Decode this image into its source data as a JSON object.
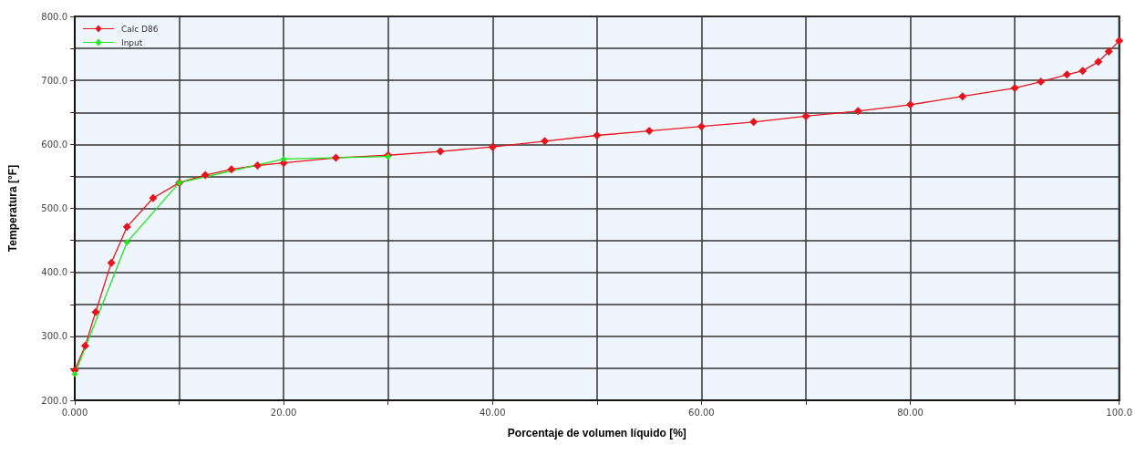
{
  "chart_data": {
    "type": "line",
    "xlabel": "Porcentaje de volumen líquido [%]",
    "ylabel": "Temperatura [°F]",
    "xlim": [
      0,
      100
    ],
    "ylim": [
      200,
      800
    ],
    "xticks": [
      {
        "value": 0,
        "label": "0.000"
      },
      {
        "value": 10,
        "label": null
      },
      {
        "value": 20,
        "label": "20.00"
      },
      {
        "value": 30,
        "label": null
      },
      {
        "value": 40,
        "label": "40.00"
      },
      {
        "value": 50,
        "label": null
      },
      {
        "value": 60,
        "label": "60.00"
      },
      {
        "value": 70,
        "label": null
      },
      {
        "value": 80,
        "label": "80.00"
      },
      {
        "value": 90,
        "label": null
      },
      {
        "value": 100,
        "label": "100.0"
      }
    ],
    "yticks": [
      {
        "value": 200,
        "label": "200.0"
      },
      {
        "value": 250,
        "label": null
      },
      {
        "value": 300,
        "label": "300.0"
      },
      {
        "value": 350,
        "label": null
      },
      {
        "value": 400,
        "label": "400.0"
      },
      {
        "value": 450,
        "label": null
      },
      {
        "value": 500,
        "label": "500.0"
      },
      {
        "value": 550,
        "label": null
      },
      {
        "value": 600,
        "label": "600.0"
      },
      {
        "value": 650,
        "label": null
      },
      {
        "value": 700,
        "label": "700.0"
      },
      {
        "value": 750,
        "label": null
      },
      {
        "value": 800,
        "label": "800.0"
      }
    ],
    "grid": true,
    "legend": "top left",
    "marker": "diamond",
    "line_style": "solid",
    "series": [
      {
        "name": "Calc D86",
        "color": "#e8141c",
        "x": [
          0,
          1,
          2,
          3.5,
          5,
          7.5,
          10,
          12.5,
          15,
          17.5,
          20,
          25,
          30,
          35,
          40,
          45,
          50,
          55,
          60,
          65,
          70,
          75,
          80,
          85,
          90,
          92.5,
          95,
          96.5,
          98,
          99,
          100
        ],
        "values": [
          247,
          285,
          338,
          415,
          471,
          516,
          540,
          552,
          561,
          567,
          571,
          579,
          583,
          589,
          596,
          605,
          614,
          621,
          628,
          635,
          644,
          652,
          662,
          675,
          688,
          698,
          709,
          715,
          729,
          745,
          762
        ]
      },
      {
        "name": "Input",
        "color": "#22e61e",
        "x": [
          0,
          5,
          10,
          20,
          30
        ],
        "values": [
          241,
          447,
          540,
          577,
          581
        ]
      }
    ]
  }
}
